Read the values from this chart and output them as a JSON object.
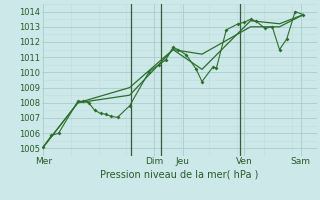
{
  "xlabel": "Pression niveau de la mer( hPa )",
  "bg_color": "#cce8e8",
  "grid_color_major": "#aacccc",
  "grid_color_minor": "#c0dcdc",
  "line_color": "#2d6e2d",
  "ylim": [
    1004.5,
    1014.5
  ],
  "xlim": [
    -0.05,
    7.55
  ],
  "series1": [
    [
      0.0,
      1005.1
    ],
    [
      0.22,
      1005.85
    ],
    [
      0.42,
      1006.0
    ],
    [
      0.95,
      1008.1
    ],
    [
      1.1,
      1008.1
    ],
    [
      1.25,
      1008.0
    ],
    [
      1.42,
      1007.5
    ],
    [
      1.58,
      1007.3
    ],
    [
      1.72,
      1007.25
    ],
    [
      1.88,
      1007.1
    ],
    [
      2.05,
      1007.05
    ],
    [
      2.38,
      1007.8
    ],
    [
      2.92,
      1010.05
    ],
    [
      3.18,
      1010.5
    ],
    [
      3.38,
      1010.82
    ],
    [
      3.58,
      1011.65
    ],
    [
      3.72,
      1011.5
    ],
    [
      3.95,
      1011.15
    ],
    [
      4.22,
      1010.2
    ],
    [
      4.38,
      1009.4
    ],
    [
      4.68,
      1010.35
    ],
    [
      4.78,
      1010.3
    ],
    [
      5.05,
      1012.8
    ],
    [
      5.38,
      1013.2
    ],
    [
      5.55,
      1013.3
    ],
    [
      5.72,
      1013.5
    ],
    [
      5.88,
      1013.35
    ],
    [
      6.12,
      1012.9
    ],
    [
      6.32,
      1013.0
    ],
    [
      6.52,
      1011.5
    ],
    [
      6.72,
      1012.2
    ],
    [
      6.95,
      1014.0
    ],
    [
      7.18,
      1013.8
    ]
  ],
  "series2": [
    [
      0.0,
      1005.1
    ],
    [
      0.95,
      1008.0
    ],
    [
      2.38,
      1008.5
    ],
    [
      3.58,
      1011.5
    ],
    [
      4.38,
      1010.2
    ],
    [
      5.72,
      1013.4
    ],
    [
      6.52,
      1013.2
    ],
    [
      7.18,
      1013.8
    ]
  ],
  "series3": [
    [
      0.0,
      1005.1
    ],
    [
      0.95,
      1008.0
    ],
    [
      2.38,
      1009.0
    ],
    [
      3.58,
      1011.5
    ],
    [
      4.38,
      1011.2
    ],
    [
      5.72,
      1013.0
    ],
    [
      6.52,
      1013.0
    ],
    [
      7.18,
      1013.8
    ]
  ],
  "vline_positions": [
    2.42,
    3.25,
    5.42
  ],
  "yticks": [
    1005,
    1006,
    1007,
    1008,
    1009,
    1010,
    1011,
    1012,
    1013,
    1014
  ],
  "xtick_positions": [
    0.0,
    3.05,
    3.85,
    5.55,
    7.1
  ],
  "xtick_labels": [
    "Mer",
    "Dim",
    "Jeu",
    "Ven",
    "Sam"
  ]
}
